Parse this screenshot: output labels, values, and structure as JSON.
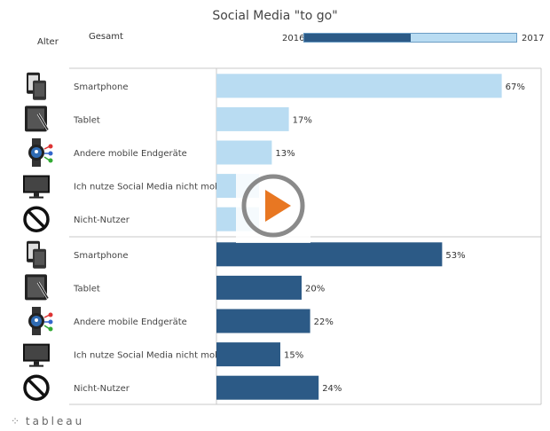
{
  "header": {
    "title": "Social Media \"to go\"",
    "col_alter": "Alter",
    "col_gesamt": "Gesamt",
    "legend_left": "2016",
    "legend_right": "2017",
    "legend_fill_fraction": 0.5
  },
  "footer": {
    "brand": "tableau",
    "mark": "⁘"
  },
  "colors": {
    "y2017": "#b9dcf2",
    "y2016": "#2c5a86",
    "axis": "#c8c8c8"
  },
  "chart_data": {
    "type": "bar",
    "xlim": [
      0,
      100
    ],
    "groups": [
      {
        "categories": [
          "Smartphone",
          "Tablet",
          "Andere mobile Endgeräte",
          "Ich nutze Social Media nicht mobil",
          "Nicht-Nutzer"
        ],
        "icons": [
          "smartphone-icon",
          "tablet-icon",
          "smartwatch-icon",
          "monitor-icon",
          "prohibited-icon"
        ],
        "values": [
          67,
          17,
          13,
          10,
          10
        ],
        "labels": [
          "67%",
          "17%",
          "13%",
          "",
          ""
        ]
      },
      {
        "categories": [
          "Smartphone",
          "Tablet",
          "Andere mobile Endgeräte",
          "Ich nutze Social Media nicht mobil",
          "Nicht-Nutzer"
        ],
        "icons": [
          "smartphone-icon",
          "tablet-icon",
          "smartwatch-icon",
          "monitor-icon",
          "prohibited-icon"
        ],
        "values": [
          53,
          20,
          22,
          15,
          24
        ],
        "labels": [
          "53%",
          "20%",
          "22%",
          "15%",
          "24%"
        ]
      }
    ]
  }
}
